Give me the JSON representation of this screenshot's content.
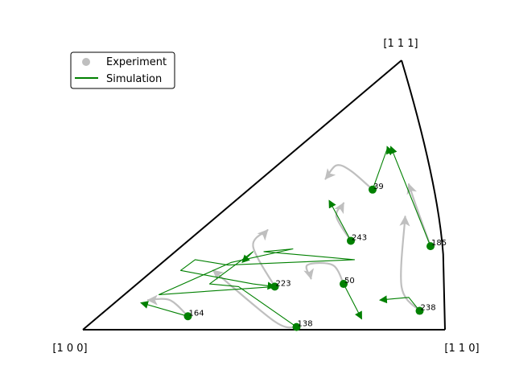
{
  "chart_data": {
    "type": "scatter",
    "plot_kind": "inverse pole figure (stereographic triangle)",
    "corner_labels": {
      "c100": "[1 0 0]",
      "c110": "[1 1 0]",
      "c111": "[1 1 1]"
    },
    "legend": {
      "placement": "upper-left",
      "entries": [
        {
          "name": "Experiment",
          "marker": "circle",
          "color": "#bfbfbf"
        },
        {
          "name": "Simulation",
          "marker": "line",
          "color": "#008000"
        }
      ]
    },
    "colors": {
      "experiment": "#bfbfbf",
      "simulation": "#008000",
      "boundary": "#000000"
    },
    "grains": [
      {
        "id": "39",
        "start": [
          0.8,
          0.52
        ],
        "experiment_path": [
          [
            0.8,
            0.52
          ],
          [
            0.74,
            0.59
          ],
          [
            0.7,
            0.61
          ],
          [
            0.67,
            0.56
          ]
        ],
        "simulation_path": [
          [
            0.8,
            0.52
          ],
          [
            0.84,
            0.67
          ],
          [
            0.85,
            0.65
          ],
          [
            0.84,
            0.68
          ]
        ]
      },
      {
        "id": "185",
        "start": [
          0.96,
          0.31
        ],
        "experiment_path": [
          [
            0.96,
            0.31
          ],
          [
            0.92,
            0.46
          ],
          [
            0.9,
            0.54
          ]
        ],
        "simulation_path": [
          [
            0.96,
            0.31
          ],
          [
            0.85,
            0.68
          ]
        ]
      },
      {
        "id": "243",
        "start": [
          0.74,
          0.33
        ],
        "experiment_path": [
          [
            0.74,
            0.33
          ],
          [
            0.7,
            0.42
          ],
          [
            0.72,
            0.47
          ]
        ],
        "simulation_path": [
          [
            0.74,
            0.33
          ],
          [
            0.68,
            0.48
          ]
        ]
      },
      {
        "id": "50",
        "start": [
          0.72,
          0.17
        ],
        "experiment_path": [
          [
            0.72,
            0.17
          ],
          [
            0.69,
            0.24
          ],
          [
            0.62,
            0.24
          ],
          [
            0.63,
            0.19
          ]
        ],
        "simulation_path": [
          [
            0.72,
            0.17
          ],
          [
            0.77,
            0.04
          ]
        ]
      },
      {
        "id": "238",
        "start": [
          0.93,
          0.07
        ],
        "experiment_path": [
          [
            0.93,
            0.07
          ],
          [
            0.88,
            0.16
          ],
          [
            0.89,
            0.42
          ]
        ],
        "simulation_path": [
          [
            0.93,
            0.07
          ],
          [
            0.9,
            0.12
          ],
          [
            0.82,
            0.11
          ]
        ]
      },
      {
        "id": "223",
        "start": [
          0.53,
          0.16
        ],
        "experiment_path": [
          [
            0.53,
            0.16
          ],
          [
            0.47,
            0.31
          ],
          [
            0.51,
            0.37
          ]
        ],
        "simulation_path": [
          [
            0.53,
            0.16
          ],
          [
            0.21,
            0.13
          ],
          [
            0.41,
            0.25
          ],
          [
            0.58,
            0.3
          ],
          [
            0.5,
            0.29
          ],
          [
            0.75,
            0.26
          ],
          [
            0.4,
            0.24
          ],
          [
            0.31,
            0.26
          ],
          [
            0.27,
            0.22
          ],
          [
            0.39,
            0.19
          ],
          [
            0.47,
            0.17
          ],
          [
            0.53,
            0.16
          ]
        ]
      },
      {
        "id": "164",
        "start": [
          0.29,
          0.05
        ],
        "experiment_path": [
          [
            0.29,
            0.05
          ],
          [
            0.24,
            0.11
          ],
          [
            0.18,
            0.11
          ]
        ],
        "simulation_path": [
          [
            0.29,
            0.05
          ],
          [
            0.16,
            0.1
          ]
        ]
      },
      {
        "id": "138",
        "start": [
          0.59,
          0.01
        ],
        "experiment_path": [
          [
            0.59,
            0.01
          ],
          [
            0.53,
            0.03
          ],
          [
            0.36,
            0.22
          ]
        ],
        "simulation_path": [
          [
            0.59,
            0.01
          ],
          [
            0.43,
            0.16
          ],
          [
            0.35,
            0.17
          ],
          [
            0.47,
            0.29
          ],
          [
            0.44,
            0.25
          ]
        ]
      }
    ]
  }
}
